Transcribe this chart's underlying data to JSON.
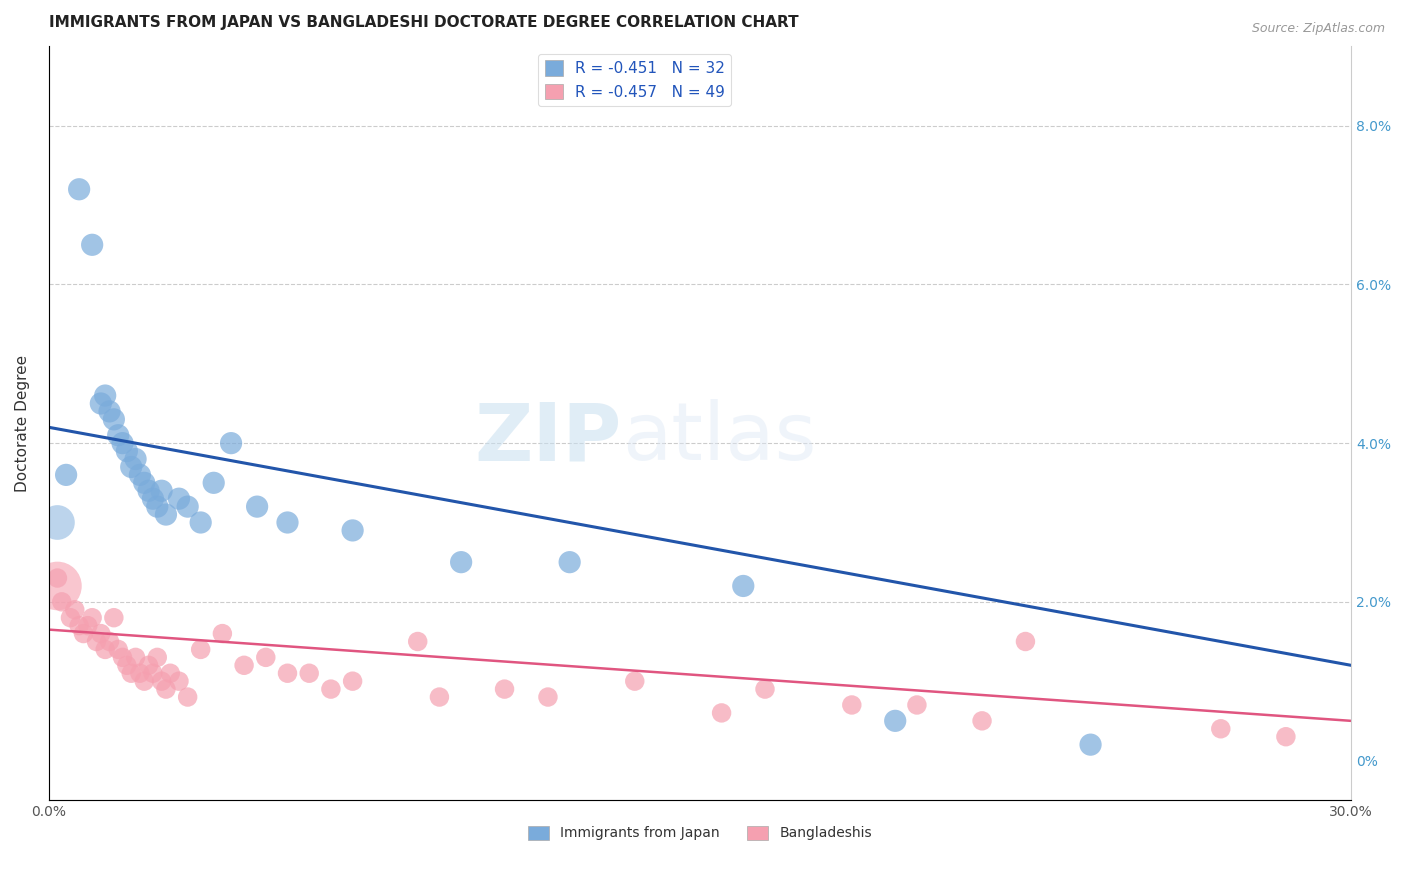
{
  "title": "IMMIGRANTS FROM JAPAN VS BANGLADESHI DOCTORATE DEGREE CORRELATION CHART",
  "source": "Source: ZipAtlas.com",
  "ylabel": "Doctorate Degree",
  "right_ytick_vals": [
    0,
    2.0,
    4.0,
    6.0,
    8.0
  ],
  "xlim": [
    0,
    30
  ],
  "ylim": [
    -0.5,
    9.0
  ],
  "legend1_label": "R = -0.451   N = 32",
  "legend2_label": "R = -0.457   N = 49",
  "legend_bottom_label1": "Immigrants from Japan",
  "legend_bottom_label2": "Bangladeshis",
  "blue_color": "#7AABDB",
  "pink_color": "#F5A0B0",
  "blue_line_color": "#2255AA",
  "pink_line_color": "#E05580",
  "watermark_zip": "ZIP",
  "watermark_atlas": "atlas",
  "blue_scatter_x": [
    0.4,
    0.7,
    1.0,
    1.2,
    1.3,
    1.4,
    1.5,
    1.6,
    1.7,
    1.8,
    1.9,
    2.0,
    2.1,
    2.2,
    2.3,
    2.4,
    2.5,
    2.6,
    2.7,
    3.0,
    3.2,
    3.5,
    3.8,
    4.2,
    4.8,
    5.5,
    7.0,
    9.5,
    12.0,
    16.0,
    19.5,
    24.0
  ],
  "blue_scatter_y": [
    3.6,
    7.2,
    6.5,
    4.5,
    4.6,
    4.4,
    4.3,
    4.1,
    4.0,
    3.9,
    3.7,
    3.8,
    3.6,
    3.5,
    3.4,
    3.3,
    3.2,
    3.4,
    3.1,
    3.3,
    3.2,
    3.0,
    3.5,
    4.0,
    3.2,
    3.0,
    2.9,
    2.5,
    2.5,
    2.2,
    0.5,
    0.2
  ],
  "pink_scatter_x": [
    0.2,
    0.3,
    0.5,
    0.6,
    0.7,
    0.8,
    0.9,
    1.0,
    1.1,
    1.2,
    1.3,
    1.4,
    1.5,
    1.6,
    1.7,
    1.8,
    1.9,
    2.0,
    2.1,
    2.2,
    2.3,
    2.4,
    2.5,
    2.6,
    2.7,
    2.8,
    3.0,
    3.2,
    3.5,
    4.0,
    4.5,
    5.0,
    5.5,
    6.0,
    6.5,
    7.0,
    8.5,
    9.0,
    10.5,
    11.5,
    13.5,
    15.5,
    16.5,
    18.5,
    20.0,
    21.5,
    22.5,
    27.0,
    28.5
  ],
  "pink_scatter_y": [
    2.3,
    2.0,
    1.8,
    1.9,
    1.7,
    1.6,
    1.7,
    1.8,
    1.5,
    1.6,
    1.4,
    1.5,
    1.8,
    1.4,
    1.3,
    1.2,
    1.1,
    1.3,
    1.1,
    1.0,
    1.2,
    1.1,
    1.3,
    1.0,
    0.9,
    1.1,
    1.0,
    0.8,
    1.4,
    1.6,
    1.2,
    1.3,
    1.1,
    1.1,
    0.9,
    1.0,
    1.5,
    0.8,
    0.9,
    0.8,
    1.0,
    0.6,
    0.9,
    0.7,
    0.7,
    0.5,
    1.5,
    0.4,
    0.3
  ],
  "blue_trendline_x": [
    0,
    30
  ],
  "blue_trendline_y": [
    4.2,
    1.2
  ],
  "pink_trendline_x": [
    0,
    30
  ],
  "pink_trendline_y": [
    1.65,
    0.5
  ],
  "blue_marker_size": 16,
  "pink_marker_size": 14,
  "blue_big_marker_x": 0.2,
  "blue_big_marker_y": 3.0,
  "blue_big_marker_size": 25,
  "pink_big_marker_x": 0.2,
  "pink_big_marker_y": 2.2,
  "pink_big_marker_size": 35
}
